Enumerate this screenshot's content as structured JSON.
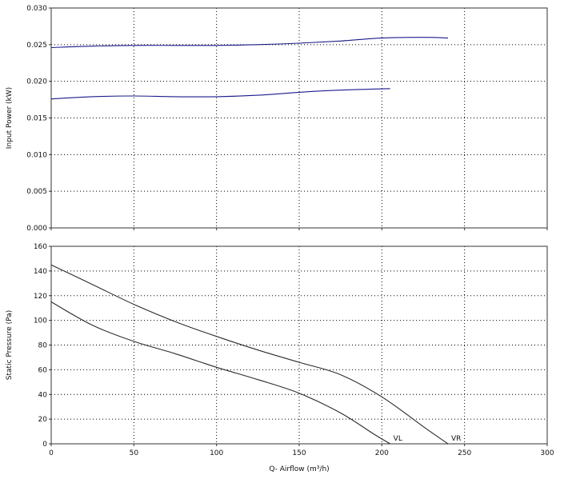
{
  "colors": {
    "power_curve": "#1a1a8c",
    "pressure_curve": "#2b2b2b",
    "grid": "#000000",
    "frame": "#333333"
  },
  "chart_data": [
    {
      "type": "line",
      "title": "",
      "xlabel": "",
      "ylabel": "Input Power (kW)",
      "xlim": [
        0,
        300
      ],
      "ylim": [
        0,
        0.03
      ],
      "grid": true,
      "x_ticks": [
        0,
        50,
        100,
        150,
        200,
        250,
        300
      ],
      "y_ticks": [
        0.0,
        0.005,
        0.01,
        0.015,
        0.02,
        0.025,
        0.03
      ],
      "y_tick_labels": [
        "0.000",
        "0.005",
        "0.010",
        "0.015",
        "0.020",
        "0.025",
        "0.030"
      ],
      "series": [
        {
          "x": [
            0,
            25,
            50,
            75,
            100,
            125,
            150,
            175,
            200,
            225,
            240
          ],
          "y": [
            0.0246,
            0.0248,
            0.0249,
            0.0249,
            0.0249,
            0.025,
            0.0252,
            0.0255,
            0.0259,
            0.026,
            0.0259
          ]
        },
        {
          "x": [
            0,
            25,
            50,
            75,
            100,
            125,
            150,
            175,
            205
          ],
          "y": [
            0.0176,
            0.0179,
            0.018,
            0.0179,
            0.0179,
            0.0181,
            0.0185,
            0.0188,
            0.019
          ]
        }
      ]
    },
    {
      "type": "line",
      "title": "",
      "xlabel": "Q- Airflow (m³/h)",
      "ylabel": "Static Pressure (Pa)",
      "xlim": [
        0,
        300
      ],
      "ylim": [
        0,
        160
      ],
      "grid": true,
      "x_ticks": [
        0,
        50,
        100,
        150,
        200,
        250,
        300
      ],
      "y_ticks": [
        0,
        20,
        40,
        60,
        80,
        100,
        120,
        140,
        160
      ],
      "series": [
        {
          "x": [
            0,
            25,
            50,
            75,
            100,
            125,
            150,
            175,
            200,
            225,
            240
          ],
          "y": [
            145,
            129,
            113,
            99,
            87,
            76,
            66,
            56,
            38,
            14,
            0
          ],
          "end_label": "VR"
        },
        {
          "x": [
            0,
            25,
            50,
            75,
            100,
            125,
            150,
            175,
            195,
            205
          ],
          "y": [
            115,
            96,
            83,
            73,
            62,
            52,
            41,
            25,
            8,
            0
          ],
          "end_label": "VL"
        }
      ]
    }
  ]
}
